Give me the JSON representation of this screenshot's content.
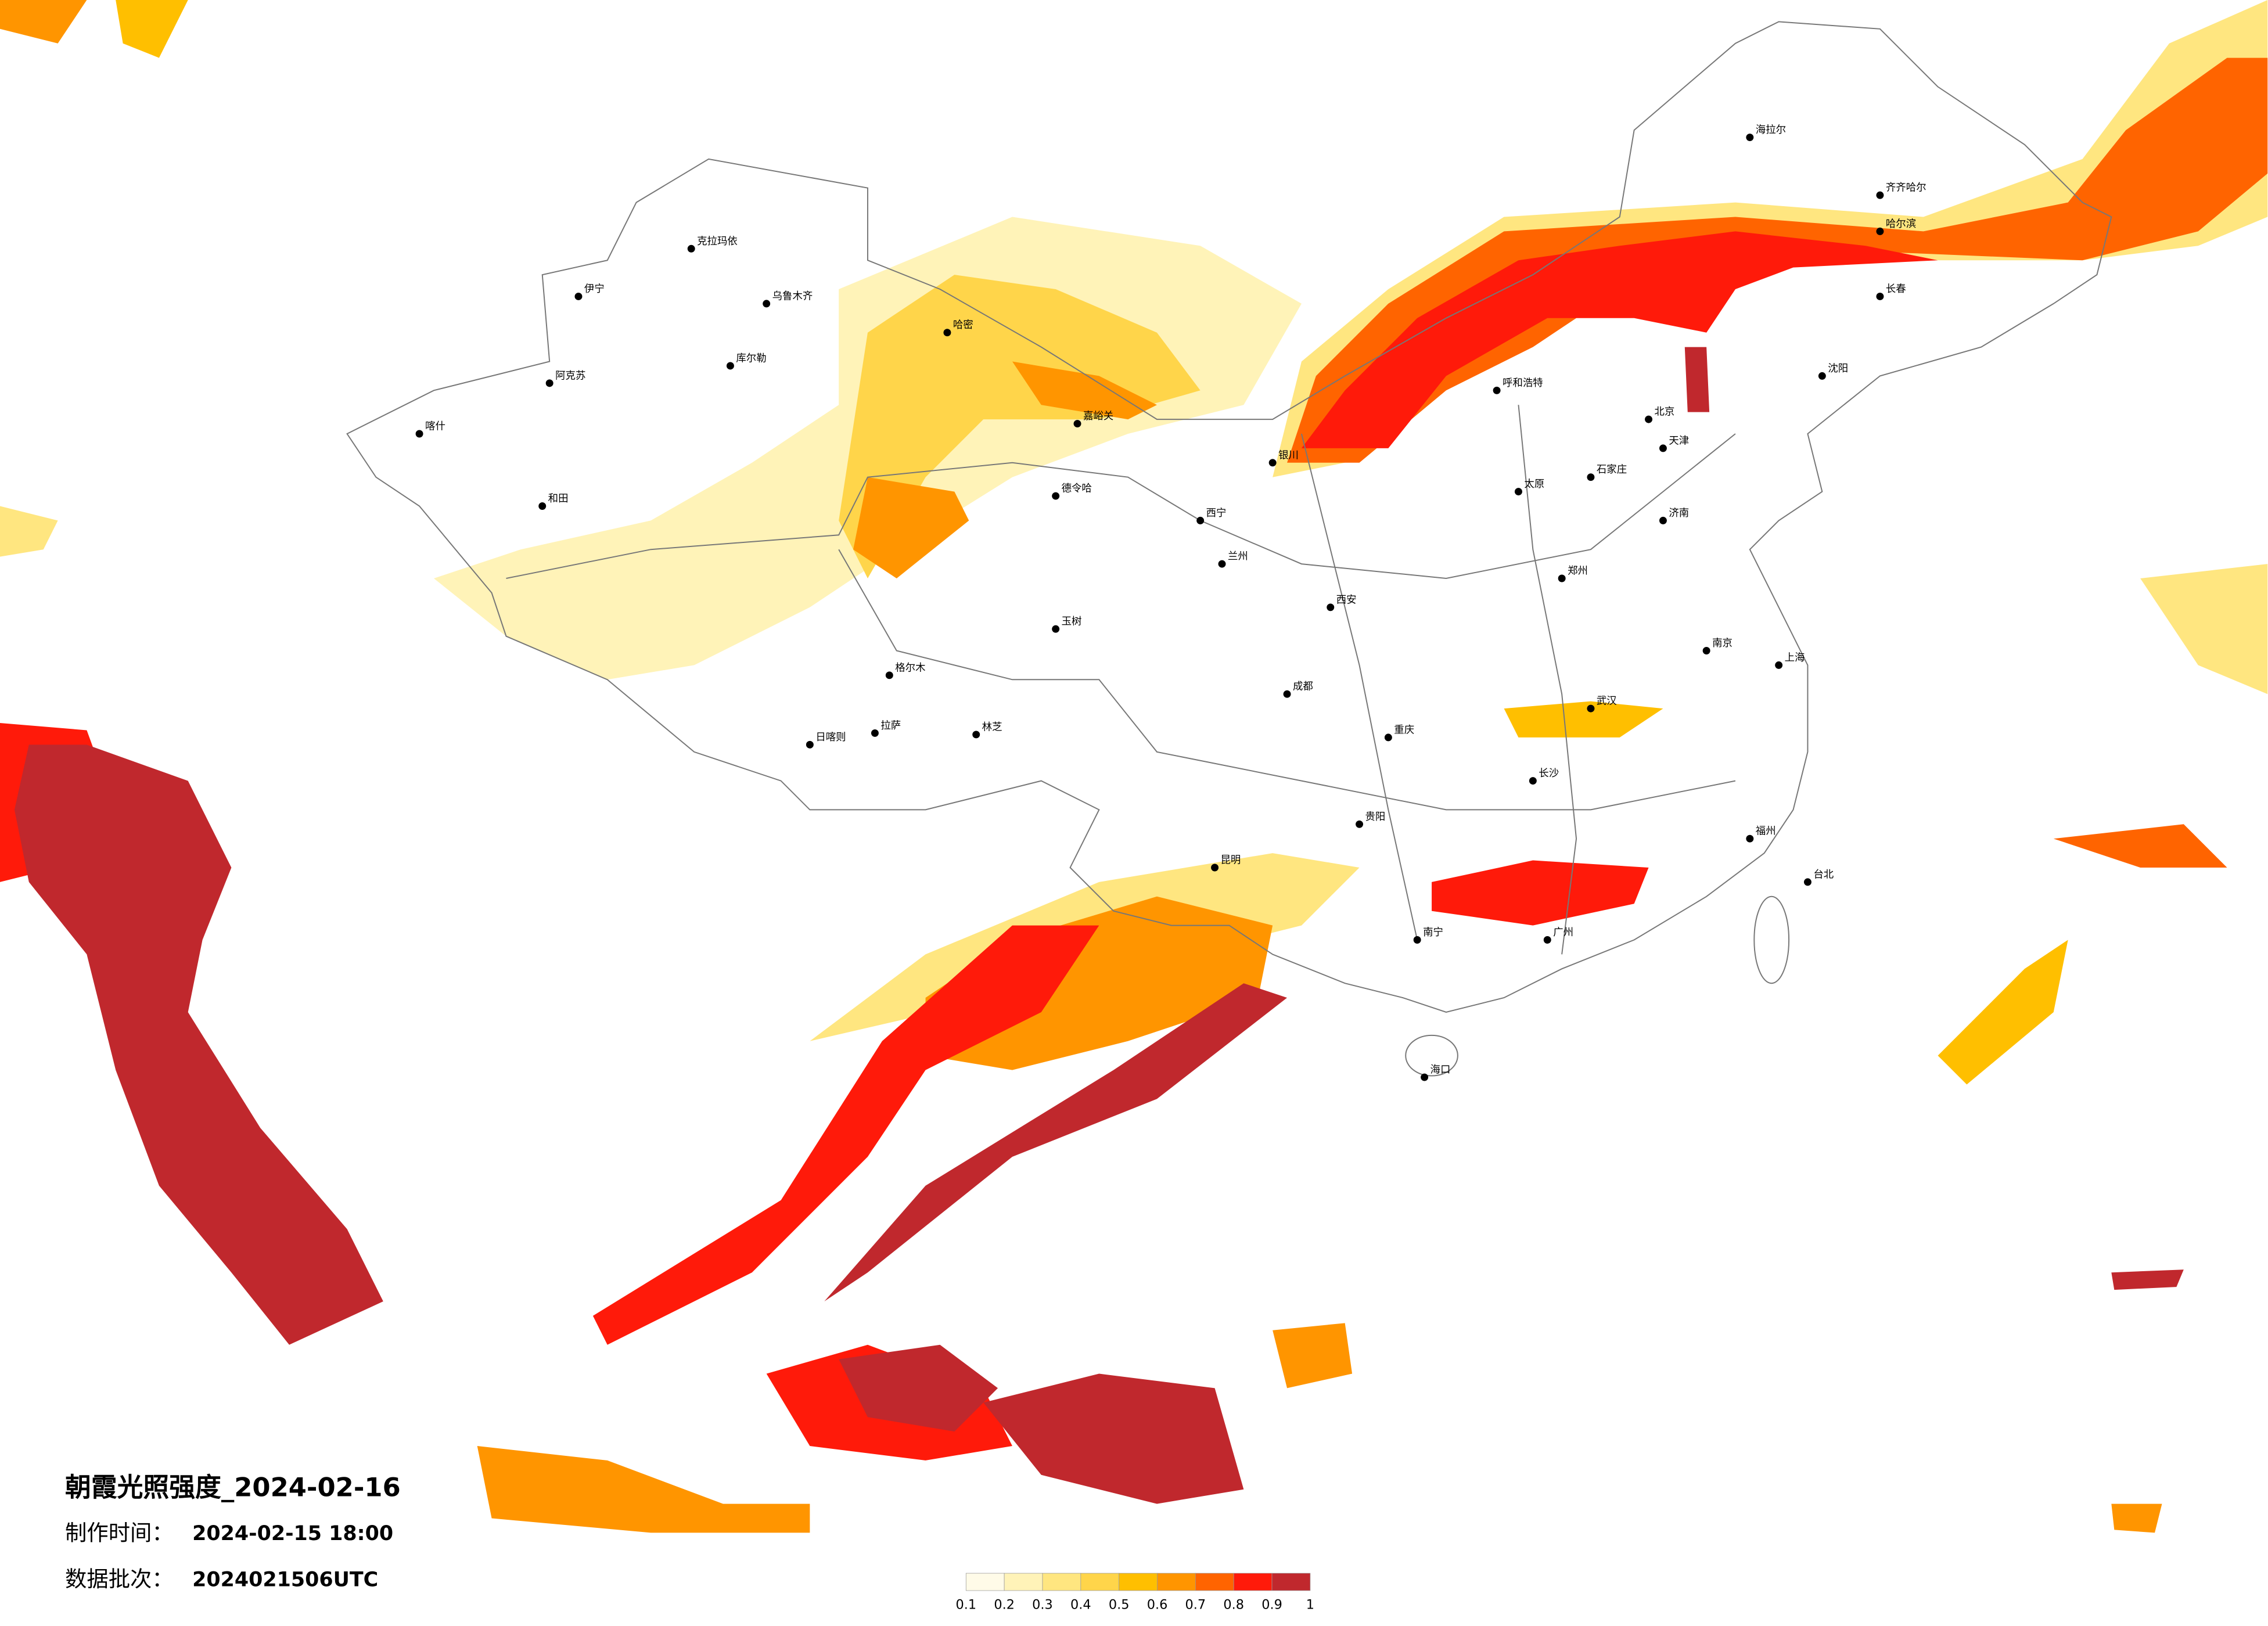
{
  "header": {
    "title": "朝霞光照强度_2024-02-16",
    "made_label": "制作时间：",
    "made_time": "2024-02-15 18:00",
    "batch_label": "数据批次：",
    "batch": "2024021506UTC"
  },
  "legend": {
    "ticks": [
      0.1,
      0.2,
      0.3,
      0.4,
      0.5,
      0.6,
      0.7,
      0.8,
      0.9,
      1
    ],
    "colors": [
      "#fffbe8",
      "#fff3b8",
      "#ffe680",
      "#ffd54a",
      "#ffbf00",
      "#ff9500",
      "#ff6400",
      "#ff1a0a",
      "#c0282d"
    ]
  },
  "cities": [
    "克拉玛依",
    "乌鲁木齐",
    "伊宁",
    "阿克苏",
    "喀什",
    "和田",
    "库尔勒",
    "哈密",
    "嘉峪关",
    "德令哈",
    "格尔木",
    "拉萨",
    "日喀则",
    "林芝",
    "玉树",
    "西宁",
    "兰州",
    "银川",
    "呼和浩特",
    "北京",
    "天津",
    "石家庄",
    "太原",
    "西安",
    "郑州",
    "济南",
    "南京",
    "上海",
    "武汉",
    "长沙",
    "重庆",
    "成都",
    "贵阳",
    "昆明",
    "南宁",
    "广州",
    "福州",
    "台北",
    "海口",
    "哈尔滨",
    "长春",
    "沈阳",
    "海拉尔",
    "齐齐哈尔"
  ]
}
